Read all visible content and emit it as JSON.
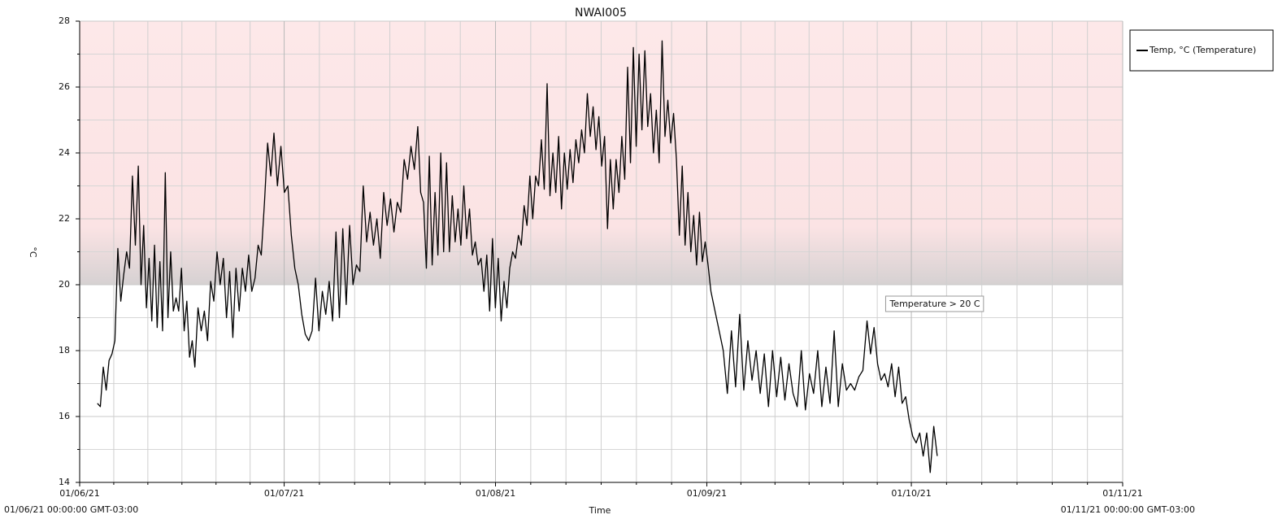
{
  "chart_data": {
    "type": "line",
    "title": "NWAI005",
    "ylabel": "°C",
    "xlabel": "Time",
    "start_label": "01/06/21 00:00:00 GMT-03:00",
    "end_label": "01/11/21 00:00:00 GMT-03:00",
    "xlim": [
      0,
      153
    ],
    "xticks": [
      {
        "value": 0,
        "label": "01/06/21"
      },
      {
        "value": 30,
        "label": "01/07/21"
      },
      {
        "value": 61,
        "label": "01/08/21"
      },
      {
        "value": 92,
        "label": "01/09/21"
      },
      {
        "value": 122,
        "label": "01/10/21"
      },
      {
        "value": 153,
        "label": "01/11/21"
      }
    ],
    "ylim": [
      14,
      28
    ],
    "yticks": [
      14,
      16,
      18,
      20,
      22,
      24,
      26,
      28
    ],
    "grid": true,
    "legend": "top-right-outside",
    "band": {
      "from": 20,
      "to": 28,
      "color": "#fde8e9",
      "label": "Temperature > 20 C"
    },
    "x": [
      2.6,
      3.03,
      3.46,
      3.89,
      4.31,
      4.74,
      5.17,
      5.6,
      6.03,
      6.46,
      6.89,
      7.31,
      7.74,
      8.17,
      8.6,
      9.0,
      9.39,
      9.79,
      10.18,
      10.58,
      10.98,
      11.37,
      11.77,
      12.16,
      12.56,
      12.95,
      13.35,
      13.74,
      14.14,
      14.53,
      14.93,
      15.33,
      15.72,
      16.12,
      16.51,
      16.9,
      17.36,
      17.83,
      18.29,
      18.76,
      19.22,
      19.68,
      20.15,
      20.61,
      21.08,
      21.54,
      22.0,
      22.47,
      22.93,
      23.4,
      23.86,
      24.32,
      24.79,
      25.25,
      25.72,
      26.18,
      26.64,
      27.11,
      27.57,
      28.04,
      28.5,
      29.01,
      29.52,
      30.03,
      30.54,
      31.05,
      31.56,
      32.07,
      32.58,
      33.09,
      33.6,
      34.1,
      34.6,
      35.1,
      35.6,
      36.1,
      36.6,
      37.1,
      37.6,
      38.1,
      38.6,
      39.1,
      39.6,
      40.1,
      40.6,
      41.1,
      41.6,
      42.1,
      42.6,
      43.1,
      43.6,
      44.1,
      44.6,
      45.1,
      45.6,
      46.1,
      46.6,
      47.1,
      47.6,
      48.1,
      48.6,
      49.1,
      49.6,
      50.02,
      50.44,
      50.86,
      51.29,
      51.71,
      52.13,
      52.55,
      52.97,
      53.39,
      53.82,
      54.24,
      54.66,
      55.08,
      55.5,
      55.92,
      56.35,
      56.77,
      57.19,
      57.61,
      58.03,
      58.45,
      58.88,
      59.3,
      59.72,
      60.14,
      60.56,
      60.98,
      61.4,
      61.83,
      62.25,
      62.67,
      63.09,
      63.51,
      63.93,
      64.36,
      64.78,
      65.2,
      65.62,
      66.04,
      66.46,
      66.89,
      67.31,
      67.73,
      68.15,
      68.57,
      68.99,
      69.42,
      69.84,
      70.26,
      70.68,
      71.1,
      71.52,
      71.94,
      72.37,
      72.79,
      73.21,
      73.63,
      74.05,
      74.47,
      74.9,
      75.32,
      75.74,
      76.16,
      76.58,
      77.0,
      77.43,
      77.85,
      78.27,
      78.69,
      79.11,
      79.53,
      79.96,
      80.38,
      80.8,
      81.22,
      81.64,
      82.06,
      82.48,
      82.91,
      83.33,
      83.75,
      84.17,
      84.59,
      85.01,
      85.44,
      85.86,
      86.28,
      86.7,
      87.12,
      87.54,
      87.97,
      88.39,
      88.81,
      89.23,
      89.65,
      90.07,
      90.5,
      90.92,
      91.34,
      91.76,
      92.18,
      92.6,
      93.2,
      93.81,
      94.41,
      95.01,
      95.61,
      96.22,
      96.82,
      97.42,
      98.02,
      98.63,
      99.23,
      99.83,
      100.43,
      101.04,
      101.64,
      102.24,
      102.84,
      103.45,
      104.05,
      104.65,
      105.25,
      105.86,
      106.46,
      107.06,
      107.66,
      108.27,
      108.87,
      109.47,
      110.07,
      110.68,
      111.28,
      111.88,
      112.48,
      113.09,
      113.69,
      114.29,
      114.89,
      115.5,
      116.02,
      116.53,
      117.05,
      117.56,
      118.08,
      118.59,
      119.11,
      119.62,
      120.14,
      120.65,
      121.17,
      121.68,
      122.2,
      122.71,
      123.23,
      123.74,
      124.26,
      124.77,
      125.29,
      125.8
    ],
    "series": [
      {
        "name": "Temp, °C (Temperature)",
        "color": "#000000",
        "values": [
          16.4,
          16.3,
          17.5,
          16.8,
          17.7,
          17.9,
          18.3,
          21.1,
          19.5,
          20.3,
          21,
          20.5,
          23.3,
          21.2,
          23.6,
          20.0,
          21.8,
          19.3,
          20.8,
          18.9,
          21.2,
          18.7,
          20.7,
          18.6,
          23.4,
          19.0,
          21.0,
          19.2,
          19.6,
          19.2,
          20.5,
          18.6,
          19.5,
          17.8,
          18.3,
          17.5,
          19.3,
          18.6,
          19.2,
          18.3,
          20.1,
          19.5,
          21.0,
          20.0,
          20.8,
          19.0,
          20.4,
          18.4,
          20.5,
          19.2,
          20.5,
          19.8,
          20.9,
          19.8,
          20.2,
          21.2,
          20.9,
          22.5,
          24.3,
          23.3,
          24.6,
          23.0,
          24.2,
          22.8,
          23.0,
          21.5,
          20.5,
          20.0,
          19.1,
          18.5,
          18.3,
          18.6,
          20.2,
          18.6,
          19.8,
          19.1,
          20.1,
          18.9,
          21.6,
          19.0,
          21.7,
          19.4,
          21.8,
          20.0,
          20.6,
          20.4,
          23.0,
          21.3,
          22.2,
          21.2,
          22.0,
          20.8,
          22.8,
          21.8,
          22.6,
          21.6,
          22.5,
          22.2,
          23.8,
          23.2,
          24.2,
          23.5,
          24.8,
          22.8,
          22.5,
          20.5,
          23.9,
          20.6,
          22.8,
          20.9,
          24.0,
          21.0,
          23.7,
          21.0,
          22.7,
          21.3,
          22.3,
          21.2,
          23.0,
          21.4,
          22.3,
          20.9,
          21.3,
          20.6,
          20.8,
          19.8,
          20.9,
          19.2,
          21.4,
          19.3,
          20.8,
          18.9,
          20.1,
          19.3,
          20.5,
          21.0,
          20.8,
          21.5,
          21.2,
          22.4,
          21.8,
          23.3,
          22.0,
          23.3,
          23.0,
          24.4,
          22.9,
          26.1,
          22.7,
          24.0,
          22.8,
          24.5,
          22.3,
          24.0,
          22.9,
          24.1,
          23.1,
          24.4,
          23.7,
          24.7,
          24.0,
          25.8,
          24.5,
          25.4,
          24.1,
          25.1,
          23.6,
          24.5,
          21.7,
          23.8,
          22.3,
          23.8,
          22.8,
          24.5,
          23.2,
          26.6,
          23.7,
          27.2,
          24.2,
          27.0,
          24.7,
          27.1,
          24.8,
          25.8,
          24.0,
          25.3,
          23.7,
          27.4,
          24.5,
          25.6,
          24.3,
          25.2,
          23.8,
          21.5,
          23.6,
          21.2,
          22.8,
          21.0,
          22.1,
          20.6,
          22.2,
          20.7,
          21.3,
          20.6,
          19.8,
          19.2,
          18.6,
          18.0,
          16.7,
          18.6,
          16.9,
          19.1,
          16.8,
          18.3,
          17.1,
          18.0,
          16.7,
          17.9,
          16.3,
          18.0,
          16.6,
          17.8,
          16.5,
          17.6,
          16.7,
          16.3,
          18.0,
          16.2,
          17.3,
          16.7,
          18.0,
          16.3,
          17.5,
          16.4,
          18.6,
          16.3,
          17.6,
          16.8,
          17.0,
          16.8,
          17.2,
          17.4,
          18.9,
          17.9,
          18.7,
          17.6,
          17.1,
          17.3,
          16.9,
          17.6,
          16.6,
          17.5,
          16.4,
          16.6,
          15.9,
          15.4,
          15.2,
          15.5,
          14.8,
          15.5,
          14.3,
          15.7,
          14.8
        ]
      }
    ]
  }
}
